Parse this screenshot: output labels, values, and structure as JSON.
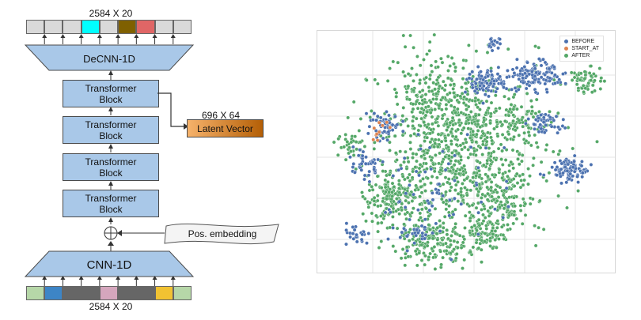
{
  "architecture": {
    "top_sequence_label": "2584 X 20",
    "decoder_label": "DeCNN-1D",
    "transformer_blocks": [
      {
        "line1": "Transformer",
        "line2": "Block"
      },
      {
        "line1": "Transformer",
        "line2": "Block"
      },
      {
        "line1": "Transformer",
        "line2": "Block"
      },
      {
        "line1": "Transformer",
        "line2": "Block"
      }
    ],
    "latent_size_label": "696 X 64",
    "latent_label": "Latent Vector",
    "pos_embedding_label": "Pos. embedding",
    "encoder_label": "CNN-1D",
    "bottom_sequence_label": "2584 X 20",
    "top_cell_colors": [
      "#d9d9d9",
      "#d9d9d9",
      "#d9d9d9",
      "#00ffff",
      "#d9d9d9",
      "#7f6000",
      "#e06666",
      "#d9d9d9",
      "#d9d9d9"
    ],
    "bottom_cell_colors": [
      "#b6d7a8",
      "#3d85c6",
      "#666666",
      "#666666",
      "#d5a6bd",
      "#666666",
      "#666666",
      "#f1c232",
      "#b6d7a8"
    ],
    "colors": {
      "block_fill": "#a9c8e8",
      "latent_fill_start": "#f6b26b",
      "latent_fill_end": "#b45f06"
    }
  },
  "scatter": {
    "legend": [
      {
        "label": "BEFORE",
        "color": "#4c72b0"
      },
      {
        "label": "START_AT",
        "color": "#dd8452"
      },
      {
        "label": "AFTER",
        "color": "#55a868"
      }
    ]
  }
}
